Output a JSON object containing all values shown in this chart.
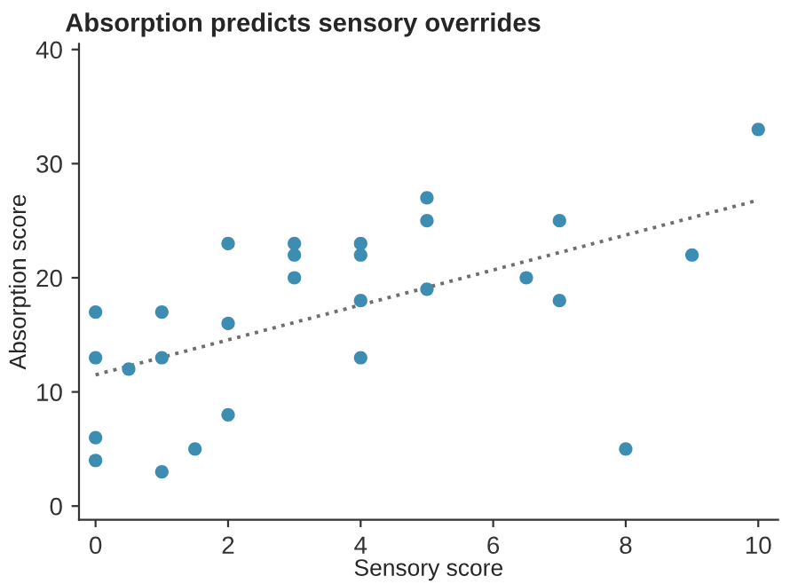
{
  "chart_data": {
    "type": "scatter",
    "title": "Absorption predicts sensory overrides",
    "xlabel": "Sensory score",
    "ylabel": "Absorption score",
    "series": [
      {
        "color": "#3d8db3",
        "marker": "circle",
        "x": [
          0,
          0,
          0,
          0,
          0.5,
          1,
          1,
          1,
          1.5,
          2,
          2,
          2,
          3,
          3,
          3,
          4,
          4,
          4,
          4,
          5,
          5,
          5,
          6.5,
          7,
          7,
          8,
          9,
          10
        ],
        "values": [
          17,
          13,
          6,
          4,
          12,
          17,
          13,
          3,
          5,
          23,
          16,
          8,
          23,
          22,
          20,
          23,
          22,
          18,
          13,
          27,
          25,
          19,
          20,
          25,
          18,
          5,
          22,
          33
        ]
      },
      {
        "type": "line",
        "color": "#6e6e6e",
        "line_style": "dotted",
        "x": [
          0,
          10
        ],
        "values": [
          11.5,
          26.8
        ]
      }
    ],
    "xlim": [
      -0.25,
      10.3
    ],
    "ylim": [
      -1.2,
      40.5
    ],
    "xticks": [
      0,
      2,
      4,
      6,
      8,
      10
    ],
    "yticks": [
      0,
      10,
      20,
      30,
      40
    ],
    "grid": false,
    "legend": false
  }
}
